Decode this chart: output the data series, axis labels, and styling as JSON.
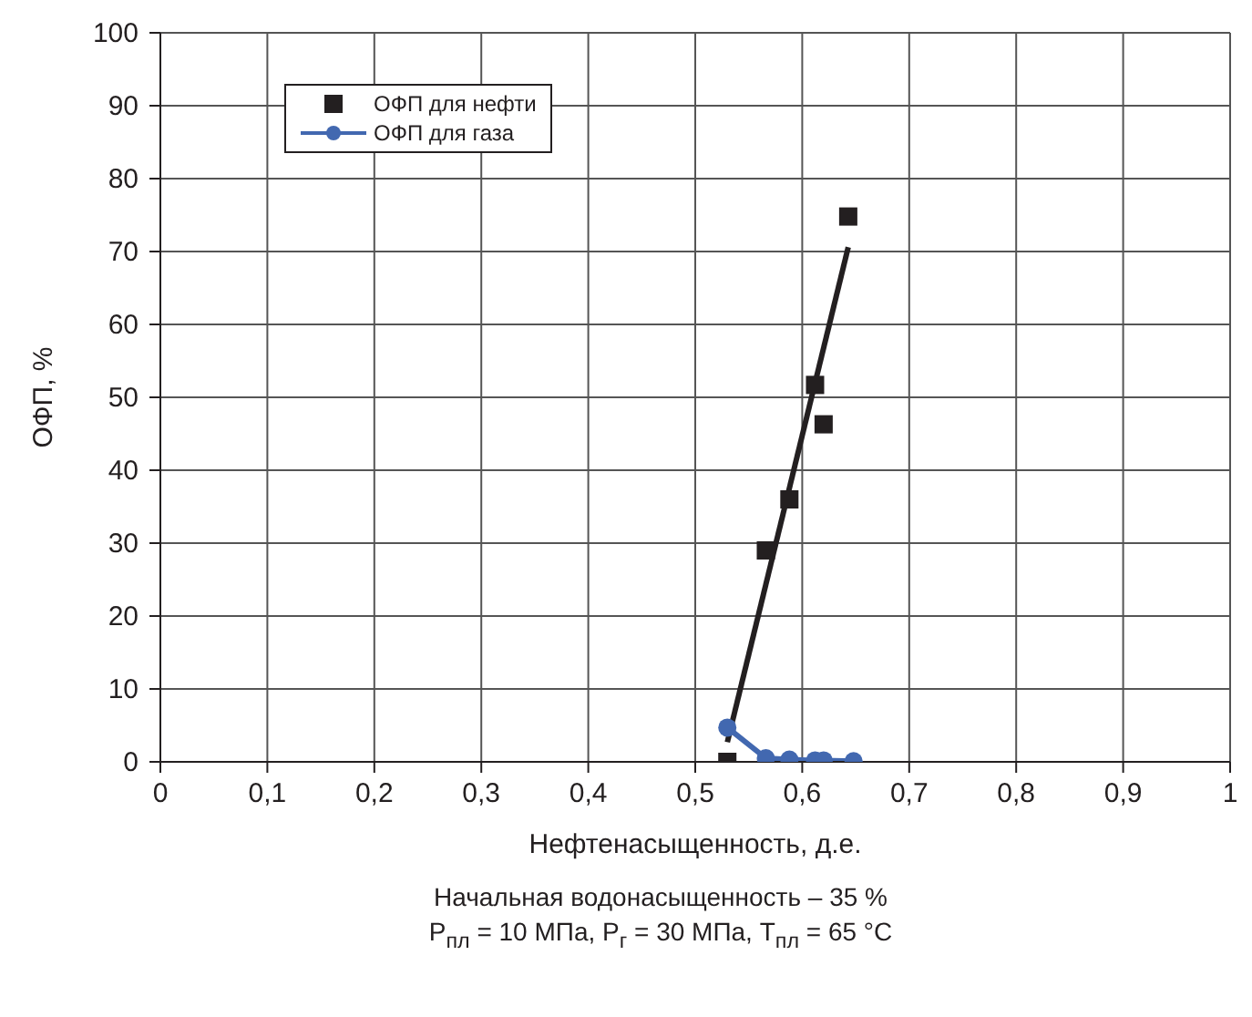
{
  "chart_data": {
    "type": "scatter",
    "xlabel": "Нефтенасыщенность, д.е.",
    "ylabel": "ОФП, %",
    "annotations": [
      "Начальная водонасыщенность – 35 %",
      "P$_{пл}$ = 10 МПа, P$_{г}$ = 30 МПа, T$_{пл}$ = 65 °C"
    ],
    "series": [
      {
        "name": "ОФП для нефти",
        "marker": "square",
        "color": "#231f20",
        "x": [
          0.53,
          0.566,
          0.588,
          0.612,
          0.62,
          0.643
        ],
        "values": [
          0,
          29,
          36,
          51.7,
          46.3,
          74.8
        ]
      },
      {
        "name": "ОФП для газа",
        "type": "line",
        "marker": "circle",
        "color": "#4268b0",
        "x": [
          0.53,
          0.566,
          0.588,
          0.612,
          0.62,
          0.648
        ],
        "values": [
          4.7,
          0.5,
          0.3,
          0.2,
          0.2,
          0.1
        ]
      },
      {
        "type": "line",
        "marker": "none",
        "color": "#231f20",
        "x": [
          0.53,
          0.643
        ],
        "values": [
          2.7,
          70.6
        ]
      }
    ],
    "xlim": [
      0,
      1
    ],
    "xticks": [
      0,
      {
        "value": 0.1,
        "label": "0,1"
      },
      {
        "value": 0.2,
        "label": "0,2"
      },
      {
        "value": 0.3,
        "label": "0,3"
      },
      {
        "value": 0.4,
        "label": "0,4"
      },
      {
        "value": 0.5,
        "label": "0,5"
      },
      {
        "value": 0.6,
        "label": "0,6"
      },
      {
        "value": 0.7,
        "label": "0,7"
      },
      {
        "value": 0.8,
        "label": "0,8"
      },
      {
        "value": 0.9,
        "label": "0,9"
      },
      1
    ],
    "ylim": [
      0,
      100
    ],
    "yticks": [
      0,
      10,
      20,
      30,
      40,
      50,
      60,
      70,
      80,
      90,
      100
    ],
    "grid": true,
    "legend": "top left"
  }
}
